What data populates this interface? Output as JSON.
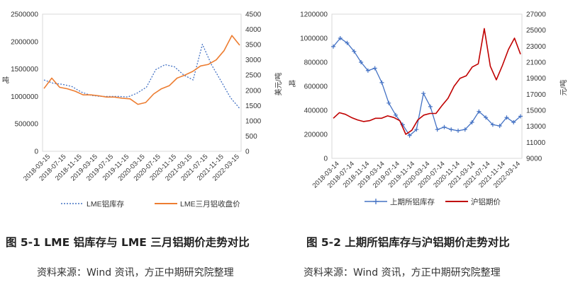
{
  "chart_data": [
    {
      "type": "line",
      "caption": "图 5-1 LME 铝库存与 LME 三月铝期价走势对比",
      "source": "资料来源：Wind 资讯，方正中期研究院整理",
      "ylabel_left": "吨",
      "ylabel_right": "美元/吨",
      "ylim_left": [
        0,
        2500000
      ],
      "yticks_left": [
        "0",
        "500000",
        "1000000",
        "1500000",
        "2000000",
        "2500000"
      ],
      "ylim_right": [
        0,
        4500
      ],
      "yticks_right": [
        "0",
        "500",
        "1000",
        "1500",
        "2000",
        "2500",
        "3000",
        "3500",
        "4000",
        "4500"
      ],
      "xticks": [
        "2018-03-15",
        "2018-07-15",
        "2018-11-15",
        "2019-03-15",
        "2019-07-15",
        "2019-11-15",
        "2020-03-15",
        "2020-07-15",
        "2020-11-15",
        "2021-03-15",
        "2021-07-15",
        "2021-11-15",
        "2022-03-15"
      ],
      "series": [
        {
          "name": "LME铝库存",
          "axis": "left",
          "color": "#4472C4",
          "style": "dotted",
          "values": [
            1300000,
            1240000,
            1220000,
            1180000,
            1080000,
            1020000,
            1000000,
            1000000,
            1000000,
            990000,
            1060000,
            1170000,
            1490000,
            1580000,
            1540000,
            1390000,
            1300000,
            1950000,
            1570000,
            1280000,
            980000,
            780000
          ]
        },
        {
          "name": "LME三月铝收盘价",
          "axis": "right",
          "color": "#ED7D31",
          "style": "solid",
          "values": [
            2060,
            2400,
            2100,
            2050,
            1970,
            1850,
            1850,
            1820,
            1780,
            1780,
            1740,
            1720,
            1540,
            1600,
            1880,
            2050,
            2150,
            2400,
            2500,
            2620,
            2800,
            2850,
            3000,
            3300,
            3800,
            3480
          ]
        }
      ]
    },
    {
      "type": "line",
      "caption": "图 5-2 上期所铝库存与沪铝期价走势对比",
      "source": "资料来源：Wind 资讯，方正中期研究院整理",
      "ylabel_left": "吨",
      "ylabel_right": "元/吨",
      "ylim_left": [
        0,
        1200000
      ],
      "yticks_left": [
        "0",
        "200000",
        "400000",
        "600000",
        "800000",
        "1000000",
        "1200000"
      ],
      "ylim_right": [
        9000,
        27000
      ],
      "yticks_right": [
        "9000",
        "11000",
        "13000",
        "15000",
        "17000",
        "19000",
        "21000",
        "23000",
        "25000",
        "27000"
      ],
      "xticks": [
        "2018-03-14",
        "2018-07-14",
        "2018-11-14",
        "2019-03-14",
        "2019-07-14",
        "2019-11-14",
        "2020-03-14",
        "2020-07-14",
        "2020-11-14",
        "2021-03-14",
        "2021-07-14",
        "2021-11-14",
        "2022-03-14"
      ],
      "series": [
        {
          "name": "上期所铝库存",
          "axis": "left",
          "color": "#4472C4",
          "style": "plus",
          "values": [
            930000,
            1000000,
            960000,
            890000,
            800000,
            730000,
            750000,
            630000,
            460000,
            360000,
            280000,
            190000,
            240000,
            540000,
            430000,
            240000,
            260000,
            240000,
            230000,
            240000,
            300000,
            390000,
            340000,
            280000,
            270000,
            340000,
            300000,
            350000
          ]
        },
        {
          "name": "沪铝期价",
          "axis": "right",
          "color": "#C00000",
          "style": "solid",
          "values": [
            14000,
            14700,
            14500,
            14100,
            13800,
            13600,
            13700,
            14000,
            14000,
            14300,
            14100,
            13700,
            12000,
            12500,
            13800,
            14400,
            14600,
            14600,
            15600,
            16500,
            18000,
            19000,
            19300,
            20400,
            20800,
            25200,
            20500,
            18800,
            20600,
            22600,
            24000,
            22000
          ]
        }
      ]
    }
  ]
}
